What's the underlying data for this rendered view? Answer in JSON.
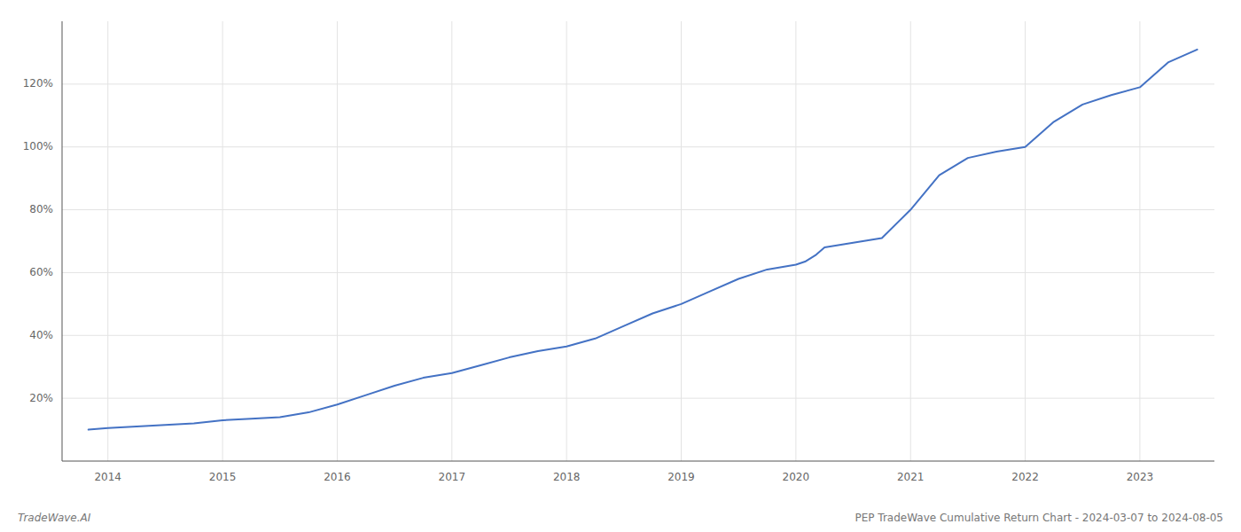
{
  "chart_data": {
    "type": "line",
    "x": [
      2013.83,
      2014.0,
      2014.25,
      2014.5,
      2014.75,
      2015.0,
      2015.25,
      2015.5,
      2015.75,
      2016.0,
      2016.25,
      2016.5,
      2016.75,
      2017.0,
      2017.25,
      2017.5,
      2017.75,
      2018.0,
      2018.25,
      2018.5,
      2018.75,
      2019.0,
      2019.25,
      2019.5,
      2019.75,
      2020.0,
      2020.08,
      2020.17,
      2020.25,
      2020.5,
      2020.75,
      2021.0,
      2021.25,
      2021.5,
      2021.75,
      2022.0,
      2022.25,
      2022.5,
      2022.75,
      2023.0,
      2023.25,
      2023.5
    ],
    "values": [
      10.0,
      10.5,
      11.0,
      11.5,
      12.0,
      13.0,
      13.5,
      14.0,
      15.5,
      18.0,
      21.0,
      24.0,
      26.5,
      28.0,
      30.5,
      33.0,
      35.0,
      36.5,
      39.0,
      43.0,
      47.0,
      50.0,
      54.0,
      58.0,
      61.0,
      62.5,
      63.5,
      65.5,
      68.0,
      69.5,
      71.0,
      80.0,
      91.0,
      96.5,
      98.5,
      100.0,
      108.0,
      113.5,
      116.5,
      119.0,
      127.0,
      131.0
    ],
    "color": "#4472c4",
    "xlim": [
      2013.6,
      2023.65
    ],
    "xticks": [
      2014,
      2015,
      2016,
      2017,
      2018,
      2019,
      2020,
      2021,
      2022,
      2023
    ],
    "ylim": [
      0,
      140
    ],
    "yticks": [
      {
        "value": 20,
        "label": "20%"
      },
      {
        "value": 40,
        "label": "40%"
      },
      {
        "value": 60,
        "label": "60%"
      },
      {
        "value": 80,
        "label": "80%"
      },
      {
        "value": 100,
        "label": "100%"
      },
      {
        "value": 120,
        "label": "120%"
      }
    ],
    "grid": true,
    "annotations": [
      "TradeWave.AI",
      "PEP TradeWave Cumulative Return Chart - 2024-03-07 to 2024-08-05"
    ]
  }
}
